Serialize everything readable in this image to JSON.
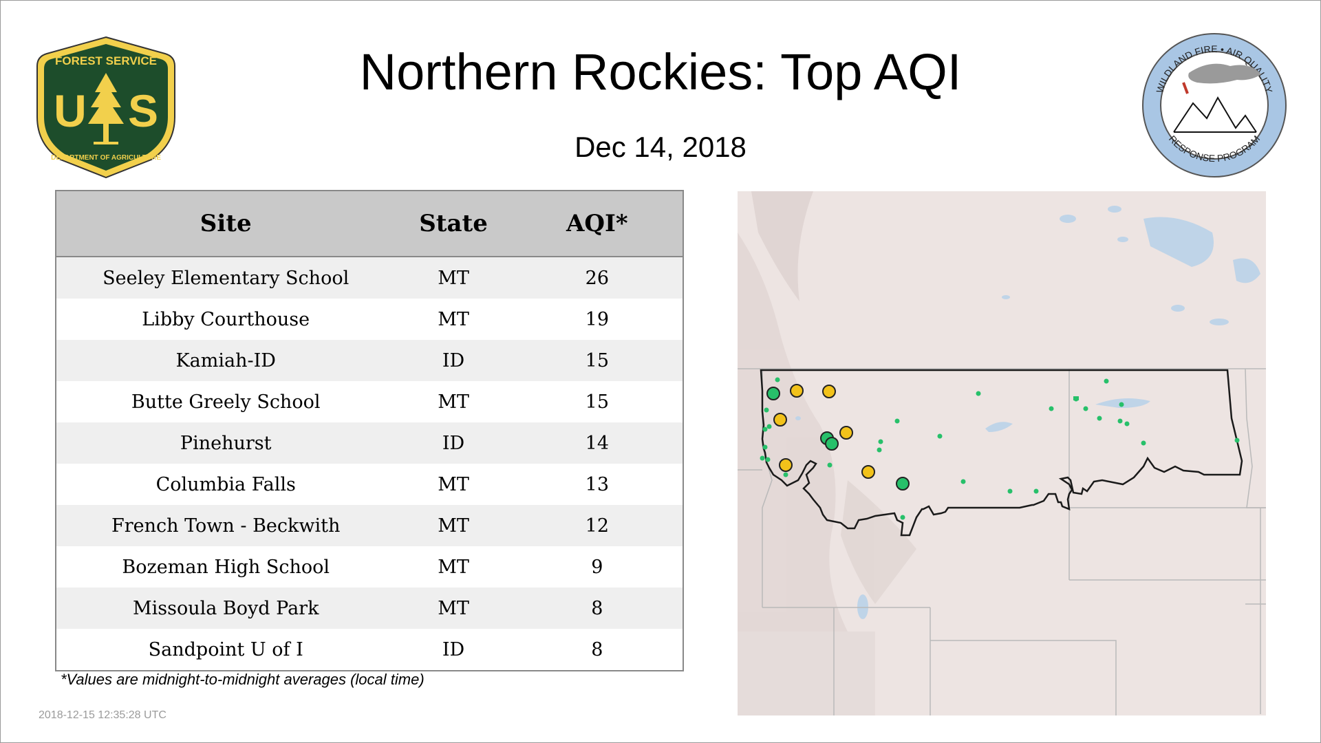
{
  "header": {
    "title": "Northern Rockies: Top AQI",
    "date": "Dec 14, 2018"
  },
  "logos": {
    "usfs": {
      "top_text": "FOREST SERVICE",
      "letters_left": "U",
      "letters_right": "S",
      "bottom_text": "DEPARTMENT OF AGRICULTURE",
      "icon": "tree-icon",
      "colors": {
        "green": "#1d4d2b",
        "gold": "#f2d04c"
      }
    },
    "wildland": {
      "top_text": "WILDLAND FIRE • AIR QUALITY",
      "bottom_text": "RESPONSE PROGRAM",
      "icon": "mountains-smoke-icon",
      "colors": {
        "ring": "#a9c6e4",
        "smoke": "#9a9a9a"
      }
    }
  },
  "table": {
    "headers": {
      "site": "Site",
      "state": "State",
      "aqi": "AQI*"
    },
    "rows": [
      {
        "site": "Seeley Elementary School",
        "state": "MT",
        "aqi": "26"
      },
      {
        "site": "Libby Courthouse",
        "state": "MT",
        "aqi": "19"
      },
      {
        "site": "Kamiah-ID",
        "state": "ID",
        "aqi": "15"
      },
      {
        "site": "Butte Greely School",
        "state": "MT",
        "aqi": "15"
      },
      {
        "site": "Pinehurst",
        "state": "ID",
        "aqi": "14"
      },
      {
        "site": "Columbia Falls",
        "state": "MT",
        "aqi": "13"
      },
      {
        "site": "French Town - Beckwith",
        "state": "MT",
        "aqi": "12"
      },
      {
        "site": "Bozeman High School",
        "state": "MT",
        "aqi": "9"
      },
      {
        "site": "Missoula Boyd Park",
        "state": "MT",
        "aqi": "8"
      },
      {
        "site": "Sandpoint U of I",
        "state": "ID",
        "aqi": "8"
      }
    ]
  },
  "footnote": "*Values are midnight-to-midnight averages (local time)",
  "timestamp": "2018-12-15 12:35:28 UTC",
  "map": {
    "colors": {
      "background": "#ede4e2",
      "water": "#bfd4e8",
      "state_lines": "#b9b9b9",
      "region_outline": "#1a1a1a",
      "aqi_good": "#27c06a",
      "aqi_moderate": "#f2c21a",
      "marker_stroke": "#222222"
    }
  }
}
